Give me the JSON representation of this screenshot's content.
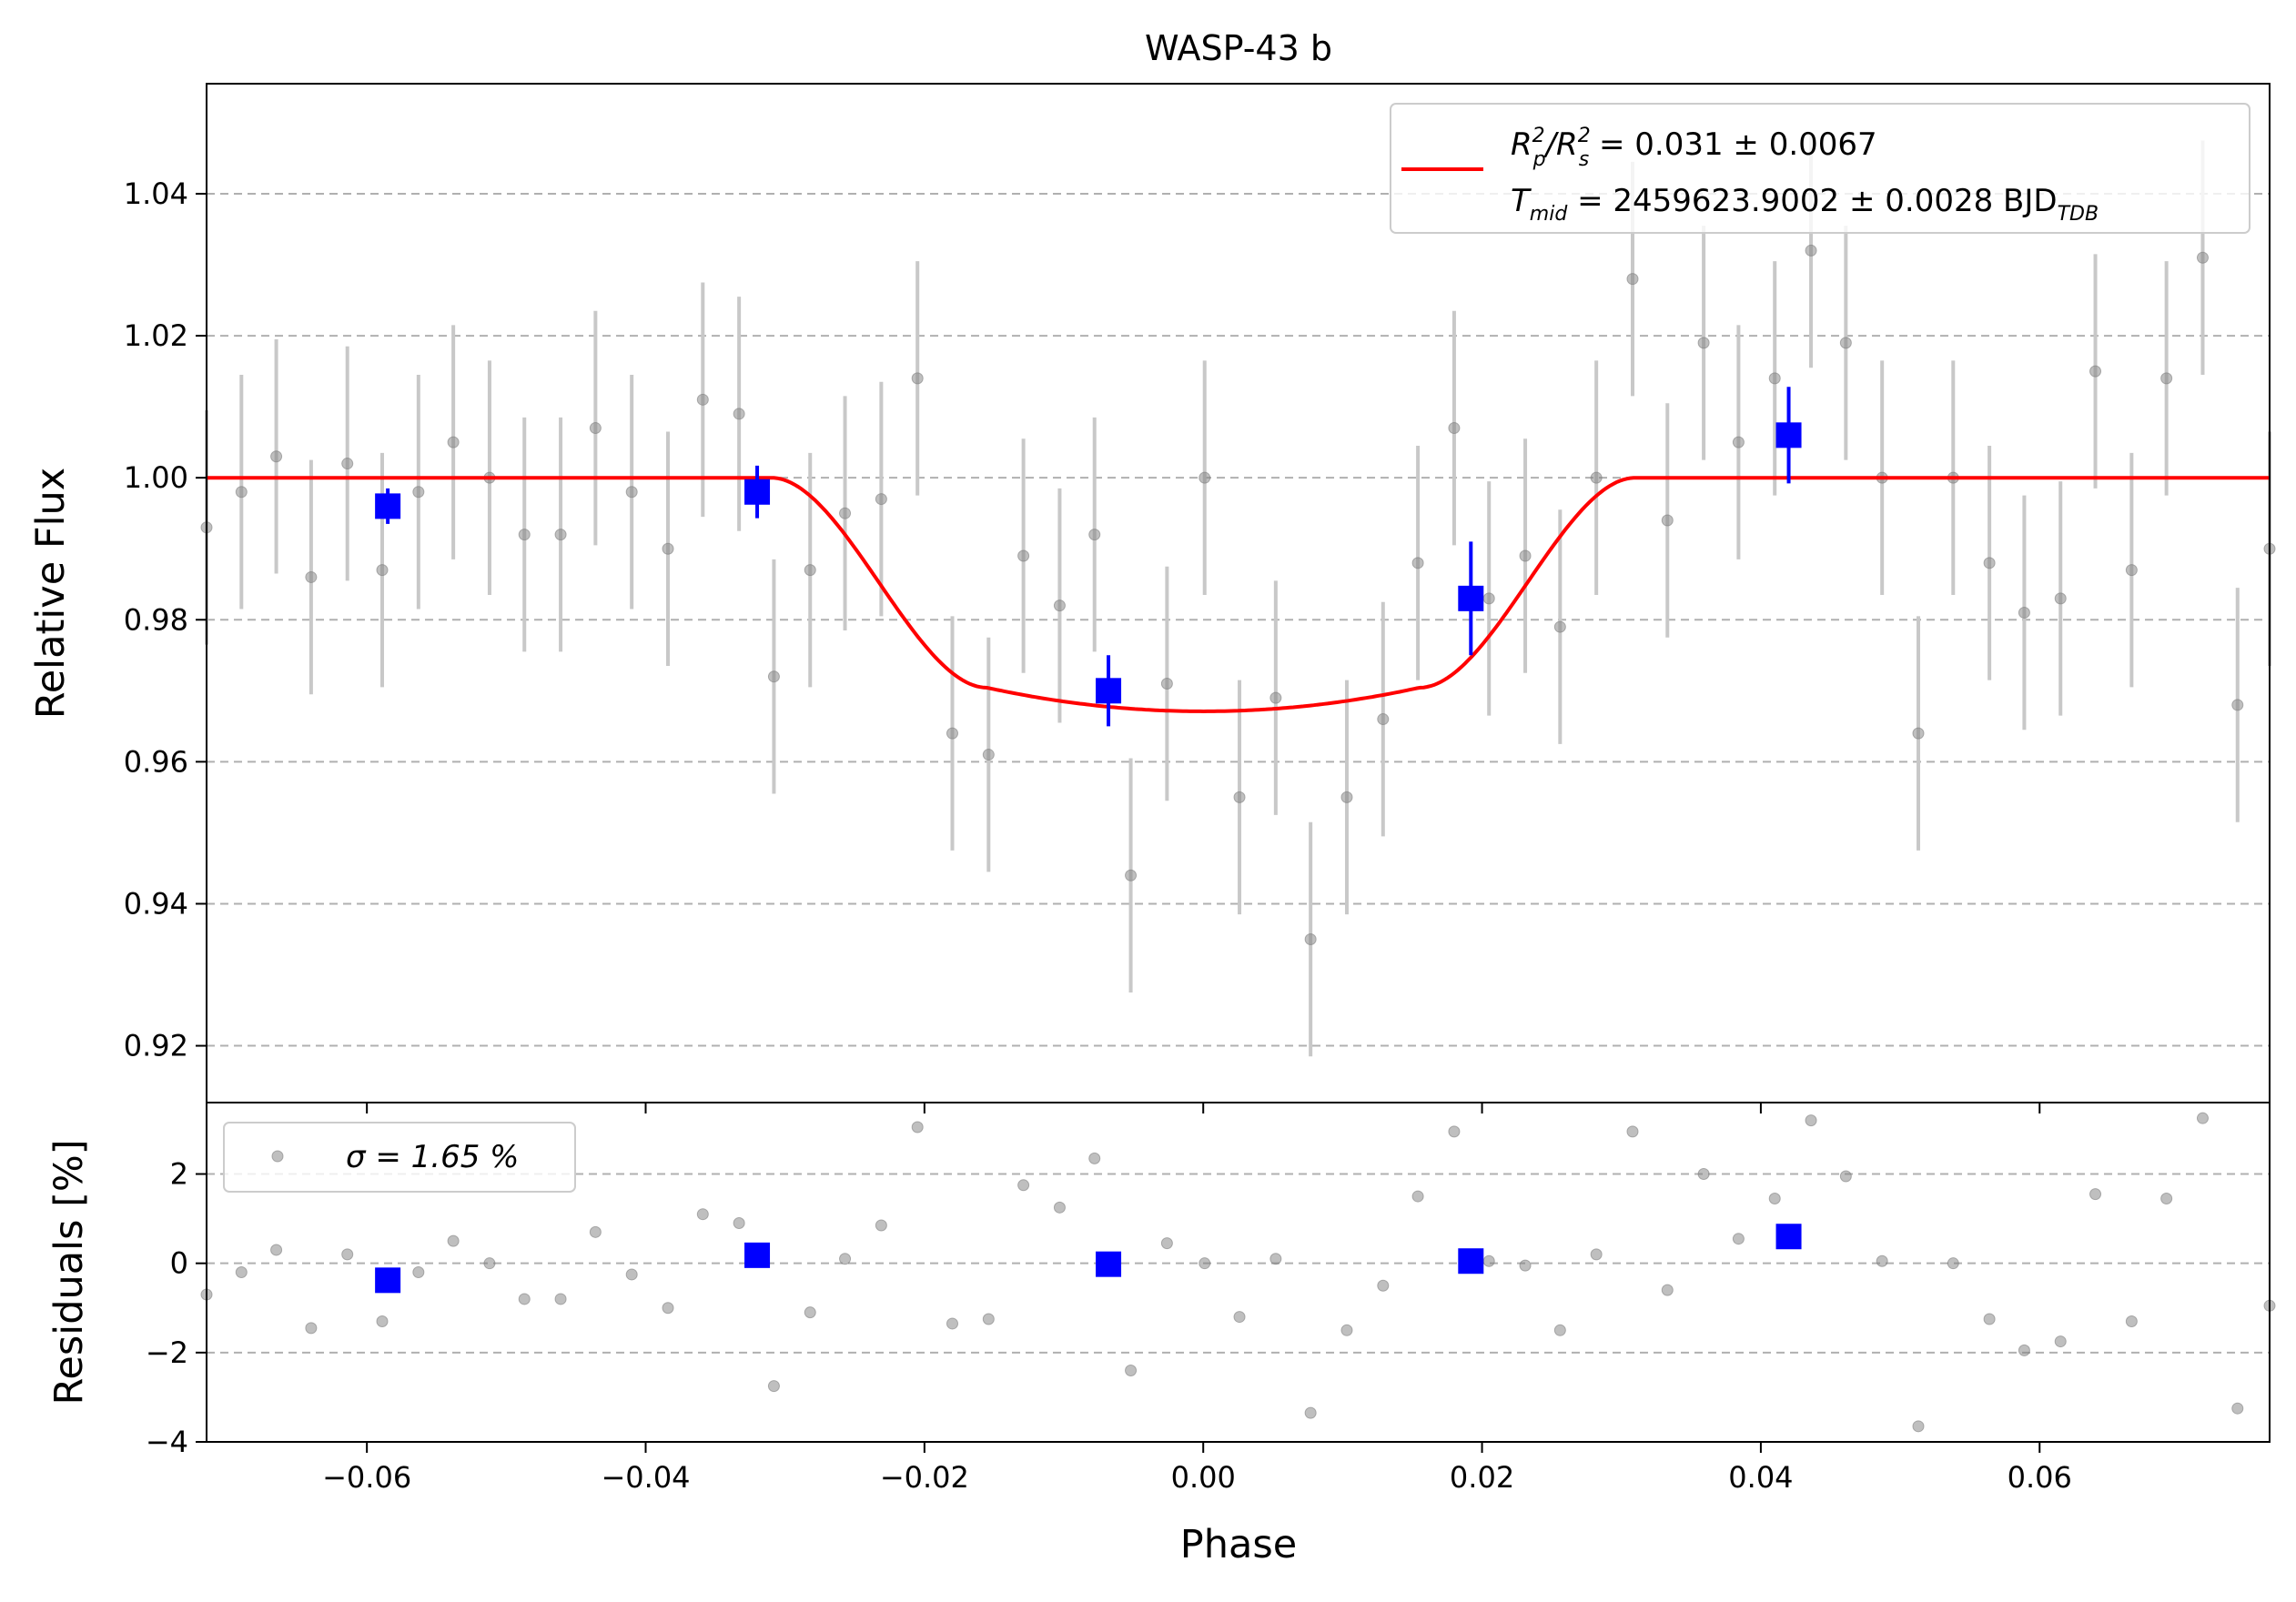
{
  "chart_data": [
    {
      "type": "scatter",
      "panel": "main",
      "title": "WASP-43 b",
      "ylabel": "Relative Flux",
      "xlim": [
        -0.0715,
        0.0765
      ],
      "ylim": [
        0.912,
        1.0555
      ],
      "xticks": [
        -0.06,
        -0.04,
        -0.02,
        0.0,
        0.02,
        0.04,
        0.06
      ],
      "yticks": [
        0.92,
        0.94,
        0.96,
        0.98,
        1.0,
        1.02,
        1.04
      ],
      "ytick_labels": [
        "0.92",
        "0.94",
        "0.96",
        "0.98",
        "1.00",
        "1.02",
        "1.04"
      ],
      "grid": "y dashed",
      "legend_placement": "top-right",
      "legend": {
        "line1": {
          "main": "R",
          "sub1": "p",
          "sup1": "2",
          "slash": "/R",
          "sub2": "s",
          "sup2": "2",
          "rest": " = 0.031 ± 0.0067"
        },
        "line2": {
          "main": "T",
          "sub": "mid",
          "rest": " = 2459623.9002 ± 0.0028 BJD",
          "sub2": "TDB"
        }
      },
      "colors": {
        "raw": "#808080",
        "binned": "#0000ff",
        "model": "#ff0000",
        "errorbar": "#c8c8c8"
      },
      "raw_error": 0.0165,
      "raw": {
        "x": [
          -0.0715,
          -0.069,
          -0.0665,
          -0.064,
          -0.0614,
          -0.0589,
          -0.0563,
          -0.0538,
          -0.0512,
          -0.0487,
          -0.0461,
          -0.0436,
          -0.041,
          -0.0384,
          -0.0359,
          -0.0333,
          -0.0308,
          -0.0282,
          -0.0257,
          -0.0231,
          -0.0205,
          -0.018,
          -0.0154,
          -0.0129,
          -0.0103,
          -0.0078,
          -0.0052,
          -0.0026,
          0.0001,
          0.0026,
          0.0052,
          0.0077,
          0.0103,
          0.0129,
          0.0154,
          0.018,
          0.0205,
          0.0231,
          0.0256,
          0.0282,
          0.0308,
          0.0333,
          0.0359,
          0.0384,
          0.041,
          0.0436,
          0.0461,
          0.0487,
          0.0513,
          0.0538,
          0.0564,
          0.0589,
          0.0615,
          0.064,
          0.0666,
          0.0691,
          0.0717,
          0.0742,
          0.0765
        ],
        "y": [
          0.993,
          0.998,
          1.003,
          0.986,
          1.002,
          0.987,
          0.998,
          1.005,
          1.0,
          0.992,
          0.992,
          1.007,
          0.998,
          0.99,
          1.011,
          1.009,
          0.972,
          0.987,
          0.995,
          0.997,
          1.014,
          0.964,
          0.961,
          0.989,
          0.982,
          0.992,
          0.944,
          0.971,
          1.0,
          0.955,
          0.969,
          0.935,
          0.955,
          0.966,
          0.988,
          1.007,
          0.983,
          0.989,
          0.979,
          1.0,
          1.028,
          0.994,
          1.019,
          1.005,
          1.014,
          1.032,
          1.019,
          1.0,
          0.964,
          1.0,
          0.988,
          0.981,
          0.983,
          1.015,
          0.987,
          1.014,
          1.031,
          0.968,
          0.99
        ]
      },
      "binned": {
        "x": [
          -0.0585,
          -0.032,
          -0.0068,
          0.0192,
          0.042
        ],
        "y": [
          0.996,
          0.998,
          0.97,
          0.983,
          1.006
        ],
        "err": [
          0.0025,
          0.0037,
          0.005,
          0.008,
          0.0068
        ]
      },
      "model": {
        "name": "",
        "baseline": 1.0,
        "depth": 0.0329,
        "t1": -0.031,
        "t2": -0.0155,
        "t3": 0.0155,
        "t4": 0.031
      }
    },
    {
      "type": "scatter",
      "panel": "residuals",
      "xlabel": "Phase",
      "ylabel": "Residuals [%]",
      "xlim": [
        -0.0715,
        0.0765
      ],
      "ylim": [
        -4.0,
        3.6
      ],
      "xticks": [
        -0.06,
        -0.04,
        -0.02,
        0.0,
        0.02,
        0.04,
        0.06
      ],
      "xtick_labels": [
        "−0.06",
        "−0.04",
        "−0.02",
        "0.00",
        "0.02",
        "0.04",
        "0.06"
      ],
      "yticks": [
        -4,
        -2,
        0,
        2
      ],
      "ytick_labels": [
        "−4",
        "−2",
        "0",
        "2"
      ],
      "grid": "y dashed",
      "legend_placement": "top-left",
      "legend_label": "σ = 1.65 %",
      "raw": {
        "x": [
          -0.0715,
          -0.069,
          -0.0665,
          -0.064,
          -0.0614,
          -0.0589,
          -0.0563,
          -0.0538,
          -0.0512,
          -0.0487,
          -0.0461,
          -0.0436,
          -0.041,
          -0.0384,
          -0.0359,
          -0.0333,
          -0.0308,
          -0.0282,
          -0.0257,
          -0.0231,
          -0.0205,
          -0.018,
          -0.0154,
          -0.0129,
          -0.0103,
          -0.0078,
          -0.0052,
          -0.0026,
          0.0001,
          0.0026,
          0.0052,
          0.0077,
          0.0103,
          0.0129,
          0.0154,
          0.018,
          0.0205,
          0.0231,
          0.0256,
          0.0282,
          0.0308,
          0.0333,
          0.0359,
          0.0384,
          0.041,
          0.0436,
          0.0461,
          0.0487,
          0.0513,
          0.0538,
          0.0564,
          0.0589,
          0.0615,
          0.064,
          0.0666,
          0.0691,
          0.0717,
          0.0742,
          0.0765
        ],
        "y": [
          -0.7,
          -0.2,
          0.3,
          -1.45,
          0.2,
          -1.3,
          -0.2,
          0.5,
          0.0,
          -0.8,
          -0.8,
          0.7,
          -0.25,
          -1.0,
          1.1,
          0.9,
          -2.75,
          -1.1,
          0.1,
          0.85,
          3.05,
          -1.35,
          -1.25,
          1.75,
          1.25,
          2.35,
          -2.4,
          0.45,
          0.0,
          -1.2,
          0.1,
          -3.35,
          -1.5,
          -0.5,
          1.5,
          2.95,
          0.05,
          -0.05,
          -1.5,
          0.2,
          2.95,
          -0.6,
          2.0,
          0.55,
          1.45,
          3.2,
          1.95,
          0.05,
          -3.65,
          0.0,
          -1.25,
          -1.95,
          -1.75,
          1.55,
          -1.3,
          1.45,
          3.25,
          -3.25,
          -0.95
        ]
      },
      "binned": {
        "x": [
          -0.0585,
          -0.032,
          -0.0068,
          0.0192,
          0.042
        ],
        "y": [
          -0.38,
          0.18,
          -0.02,
          0.05,
          0.6
        ]
      }
    }
  ]
}
